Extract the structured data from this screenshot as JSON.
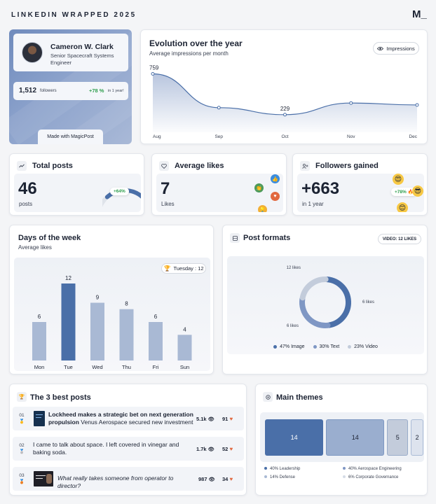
{
  "header": {
    "title": "LINKEDIN WRAPPED 2025",
    "logo": "M_"
  },
  "profile": {
    "name": "Cameron W. Clark",
    "role": "Senior Spacecraft Systems Engineer",
    "followers_value": "1,512",
    "followers_label": "followers",
    "growth_value": "+78 %",
    "growth_label": "in 1 year!",
    "made_with": "Made with MagicPost",
    "accent_color": "#7f97c4"
  },
  "evolution": {
    "title": "Evolution over the year",
    "subtitle": "Average impressions per month",
    "toggle_label": "Impressions",
    "toggle_icon": "eye-icon",
    "chart_data": {
      "type": "area",
      "x": [
        "Aug",
        "Sep",
        "Oct",
        "Nov",
        "Dec"
      ],
      "series": [
        {
          "values": [
            759,
            320,
            229,
            380,
            355
          ]
        }
      ],
      "data_labels": {
        "Aug": "759",
        "Oct": "229"
      },
      "ylim": [
        0,
        800
      ],
      "grid": false,
      "color": "#4a6fa8"
    }
  },
  "total_posts": {
    "title": "Total posts",
    "icon": "trend-icon",
    "value": "46",
    "label": "posts",
    "badge": "+64%",
    "gauge_fraction": 0.64
  },
  "average_likes": {
    "title": "Average likes",
    "icon": "heart-icon",
    "value": "7",
    "label": "Likes"
  },
  "followers_gained": {
    "title": "Followers gained",
    "icon": "user-plus-icon",
    "value": "+663",
    "label": "in 1 year",
    "badge": "+78% 🔥"
  },
  "days_of_week": {
    "title": "Days of the week",
    "subtitle": "Average likes",
    "best_label": "Tuesday : 12",
    "best_icon": "trophy-icon",
    "chart_data": {
      "type": "bar",
      "categories": [
        "Mon",
        "Tue",
        "Wed",
        "Thu",
        "Fri",
        "Sun"
      ],
      "values": [
        6,
        12,
        9,
        8,
        6,
        4
      ],
      "highlight": "Tue",
      "ylim": [
        0,
        12
      ],
      "colors": {
        "default": "#a9b9d4",
        "highlight": "#4a6fa8"
      }
    }
  },
  "post_formats": {
    "title": "Post formats",
    "badge": "VIDEO: 12 LIKES",
    "chart_data": {
      "type": "pie",
      "donut": true,
      "slice_labels": [
        "6 likes",
        "6 likes",
        "12 likes"
      ],
      "series": [
        {
          "name": "47% Image",
          "value": 47,
          "color": "#4a6fa8"
        },
        {
          "name": "30% Text",
          "value": 30,
          "color": "#7f97c4"
        },
        {
          "name": "23% Video",
          "value": 23,
          "color": "#c3ccdb"
        }
      ]
    }
  },
  "best_posts": {
    "title": "The 3 best posts",
    "icon": "trophy-icon",
    "items": [
      {
        "rank": "01",
        "medal": "🥇",
        "bold": "Lockheed makes a strategic bet on next generation propulsion",
        "text": " Venus Aerospace secured new investment",
        "views": "5.1k",
        "likes": "91"
      },
      {
        "rank": "02",
        "medal": "🥈",
        "bold": "",
        "text": "I came to talk about space. I left covered in vinegar and baking soda.",
        "views": "1.7k",
        "likes": "52"
      },
      {
        "rank": "03",
        "medal": "🥉",
        "bold": "",
        "text": "What really takes someone from operator to director?",
        "views": "987",
        "likes": "34"
      }
    ]
  },
  "main_themes": {
    "title": "Main themes",
    "chart_data": {
      "type": "bar",
      "categories": [
        "Leadership",
        "Aerospace Engineering",
        "Defense",
        "Corporate Governance"
      ],
      "values": [
        14,
        14,
        5,
        2
      ],
      "colors": [
        "#4a6fa8",
        "#9aaecf",
        "#c3ccdb",
        "#dde3ee"
      ]
    },
    "legend": [
      {
        "label": "40% Leadership",
        "color": "#4a6fa8"
      },
      {
        "label": "40% Aerospace Engineering",
        "color": "#7f97c4"
      },
      {
        "label": "14% Defense",
        "color": "#a9b9d4"
      },
      {
        "label": "6% Corporate Governance",
        "color": "#d5dbe6"
      }
    ]
  }
}
